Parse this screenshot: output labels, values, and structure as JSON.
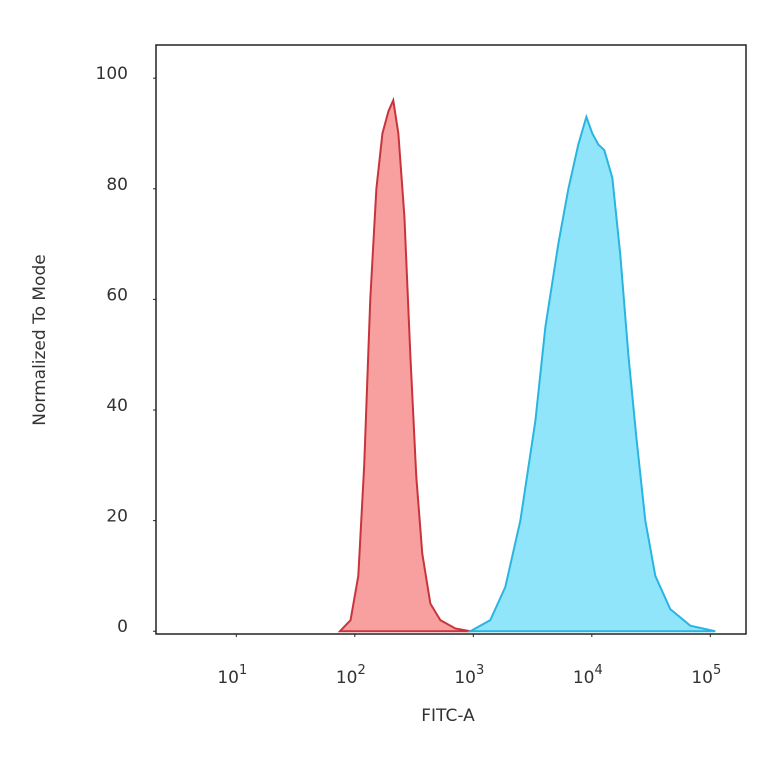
{
  "chart_data": {
    "type": "histogram-area",
    "xlabel": "FITC-A",
    "ylabel": "Normalized To Mode",
    "xscale": "log",
    "xlim": [
      2.1,
      200000
    ],
    "ylim": [
      -0.5,
      106
    ],
    "xticks": [
      {
        "value": 10,
        "label": "10",
        "exponent": "1"
      },
      {
        "value": 100,
        "label": "10",
        "exponent": "2"
      },
      {
        "value": 1000,
        "label": "10",
        "exponent": "3"
      },
      {
        "value": 10000,
        "label": "10",
        "exponent": "4"
      },
      {
        "value": 100000,
        "label": "10",
        "exponent": "5"
      }
    ],
    "yticks": [
      0,
      20,
      40,
      60,
      80,
      100
    ],
    "series": [
      {
        "color": "#c8343c",
        "fill": "#f89a9a",
        "x": [
          75,
          92,
          107,
          120,
          135,
          152,
          171,
          192,
          211,
          233,
          262,
          294,
          330,
          371,
          434,
          527,
          705,
          944
        ],
        "values": [
          0,
          2,
          10,
          30,
          60,
          80,
          90,
          94,
          96,
          90,
          75,
          50,
          28,
          14,
          5,
          2,
          0.5,
          0
        ]
      },
      {
        "color": "#29b5e0",
        "fill": "#8ae4fb",
        "x": [
          944,
          1390,
          1862,
          2494,
          3337,
          4055,
          5212,
          6340,
          7690,
          8995,
          10100,
          11350,
          12740,
          14890,
          17400,
          20330,
          23770,
          28270,
          34360,
          45930,
          67760,
          110200
        ],
        "values": [
          0,
          2,
          8,
          20,
          38,
          55,
          70,
          80,
          88,
          93,
          90,
          88,
          87,
          82,
          68,
          50,
          35,
          20,
          10,
          4,
          1,
          0
        ]
      }
    ]
  }
}
